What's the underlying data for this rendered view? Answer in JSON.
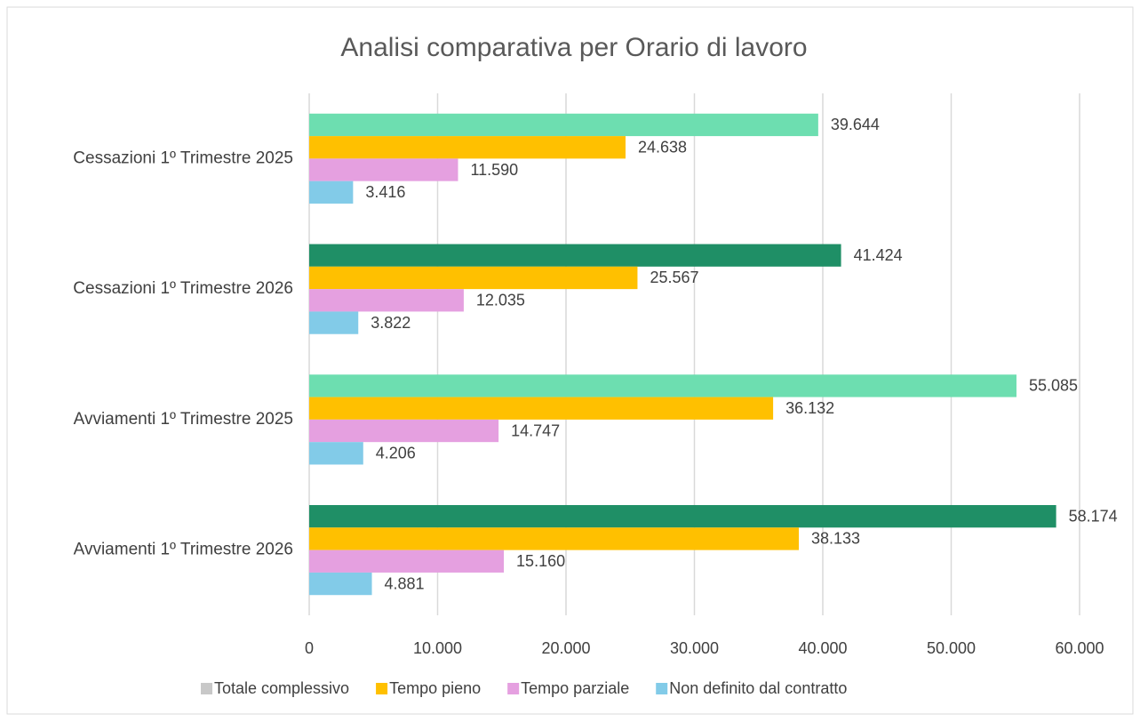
{
  "chart_data": {
    "type": "hbar",
    "title": "Analisi comparativa per Orario di lavoro",
    "categories": [
      "Cessazioni 1º Trimestre 2025",
      "Cessazioni 1º Trimestre 2026",
      "Avviamenti 1º Trimestre 2025",
      "Avviamenti 1º Trimestre 2026"
    ],
    "series": [
      {
        "name": "Totale complessivo",
        "color": "#c8c8c8",
        "point_colors": [
          "#6ddeb0",
          "#1f8f66",
          "#6ddeb0",
          "#1f8f66"
        ],
        "values": [
          39644,
          41424,
          55085,
          58174
        ],
        "value_labels": [
          "39.644",
          "41.424",
          "55.085",
          "58.174"
        ]
      },
      {
        "name": "Tempo pieno",
        "color": "#ffc000",
        "values": [
          24638,
          25567,
          36132,
          38133
        ],
        "value_labels": [
          "24.638",
          "25.567",
          "36.132",
          "38.133"
        ]
      },
      {
        "name": "Tempo parziale",
        "color": "#e5a0e0",
        "values": [
          11590,
          12035,
          14747,
          15160
        ],
        "value_labels": [
          "11.590",
          "12.035",
          "14.747",
          "15.160"
        ]
      },
      {
        "name": "Non definito dal contratto",
        "color": "#82cbe8",
        "values": [
          3416,
          3822,
          4206,
          4881
        ],
        "value_labels": [
          "3.416",
          "3.822",
          "4.206",
          "4.881"
        ]
      }
    ],
    "xlim": [
      0,
      60000
    ],
    "xticks": [
      0,
      {
        "value": 10000,
        "label": "10.000"
      },
      {
        "value": 20000,
        "label": "20.000"
      },
      {
        "value": 30000,
        "label": "30.000"
      },
      {
        "value": 40000,
        "label": "40.000"
      },
      {
        "value": 50000,
        "label": "50.000"
      },
      {
        "value": 60000,
        "label": "60.000"
      }
    ],
    "grid": true,
    "legend": "bottom"
  }
}
